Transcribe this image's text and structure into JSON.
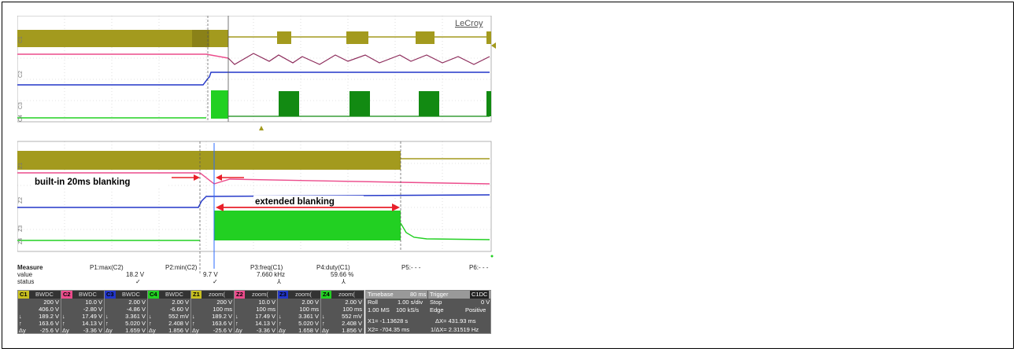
{
  "brand": "LeCroy",
  "colors": {
    "c1": "#a39a1e",
    "c2": "#ec4c8c",
    "c3": "#2236c8",
    "c4": "#22d022",
    "c4_dark": "#128a12",
    "c2_dark": "#8c2a5a",
    "annotation": "#e8202a"
  },
  "trace_labels": {
    "top": [
      "C1",
      "C2",
      "C3",
      "C4"
    ],
    "zoom": [
      "Z1",
      "Z2",
      "Z3",
      "Z4"
    ]
  },
  "annotations": {
    "blanking_builtin": "built-in 20ms blanking",
    "blanking_extended": "extended blanking"
  },
  "measure": {
    "row_labels": [
      "Measure",
      "value",
      "status"
    ],
    "columns": [
      {
        "name": "P1:max(C2)",
        "value": "18.2 V",
        "status": "✓"
      },
      {
        "name": "P2:min(C2)",
        "value": "9.7 V",
        "status": "✓"
      },
      {
        "name": "P3:freq(C1)",
        "value": "7.660 kHz",
        "status": "⅄"
      },
      {
        "name": "P4:duty(C1)",
        "value": "59.66 %",
        "status": "⅄"
      },
      {
        "name": "P5:- - -",
        "value": "",
        "status": ""
      },
      {
        "name": "P6:- - -",
        "value": "",
        "status": ""
      }
    ]
  },
  "channels": [
    {
      "tag": "C1",
      "badge": "BWDC",
      "rows": [
        "200 V",
        "406.0 V",
        "189.2 V",
        "163.6 V",
        "-25.6 V"
      ],
      "color": "#c8c020"
    },
    {
      "tag": "C2",
      "badge": "BWDC",
      "rows": [
        "10.0 V",
        "-2.80 V",
        "17.49 V",
        "14.13 V",
        "-3.36 V"
      ],
      "color": "#ec4c8c"
    },
    {
      "tag": "C3",
      "badge": "BWDC",
      "rows": [
        "2.00 V",
        "-4.86 V",
        "3.361 V",
        "5.020 V",
        "1.659 V"
      ],
      "color": "#2236c8"
    },
    {
      "tag": "C4",
      "badge": "BWDC",
      "rows": [
        "2.00 V",
        "-6.60 V",
        "552 mV",
        "2.408 V",
        "1.856 V"
      ],
      "color": "#22d022"
    },
    {
      "tag": "Z1",
      "badge": "zoom(",
      "rows": [
        "200 V",
        "100 ms",
        "189.2 V",
        "163.6 V",
        "-25.6 V"
      ],
      "color": "#c8c020"
    },
    {
      "tag": "Z2",
      "badge": "zoom(",
      "rows": [
        "10.0 V",
        "100 ms",
        "17.49 V",
        "14.13 V",
        "-3.36 V"
      ],
      "color": "#ec4c8c"
    },
    {
      "tag": "Z3",
      "badge": "zoom(",
      "rows": [
        "2.00 V",
        "100 ms",
        "3.361 V",
        "5.020 V",
        "1.658 V"
      ],
      "color": "#2236c8"
    },
    {
      "tag": "Z4",
      "badge": "zoom(",
      "rows": [
        "2.00 V",
        "100 ms",
        "552 mV",
        "2.408 V",
        "1.856 V"
      ],
      "color": "#22d022"
    }
  ],
  "timebase": {
    "title": "Timebase",
    "value": "80 ms",
    "mode": "Roll",
    "sdiv": "1.00 s/div",
    "samples": "1.00 MS",
    "rate": "100 kS/s",
    "x1": "X1= -1.13628 s",
    "x2": "X2= -704.35 ms",
    "dx": "ΔX= 431.93 ms",
    "inv": "1/ΔX= 2.31519 Hz"
  },
  "trigger": {
    "title": "Trigger",
    "badge": "C1DC",
    "state": "Stop",
    "level": "0 V",
    "type": "Edge",
    "slope": "Positive"
  }
}
